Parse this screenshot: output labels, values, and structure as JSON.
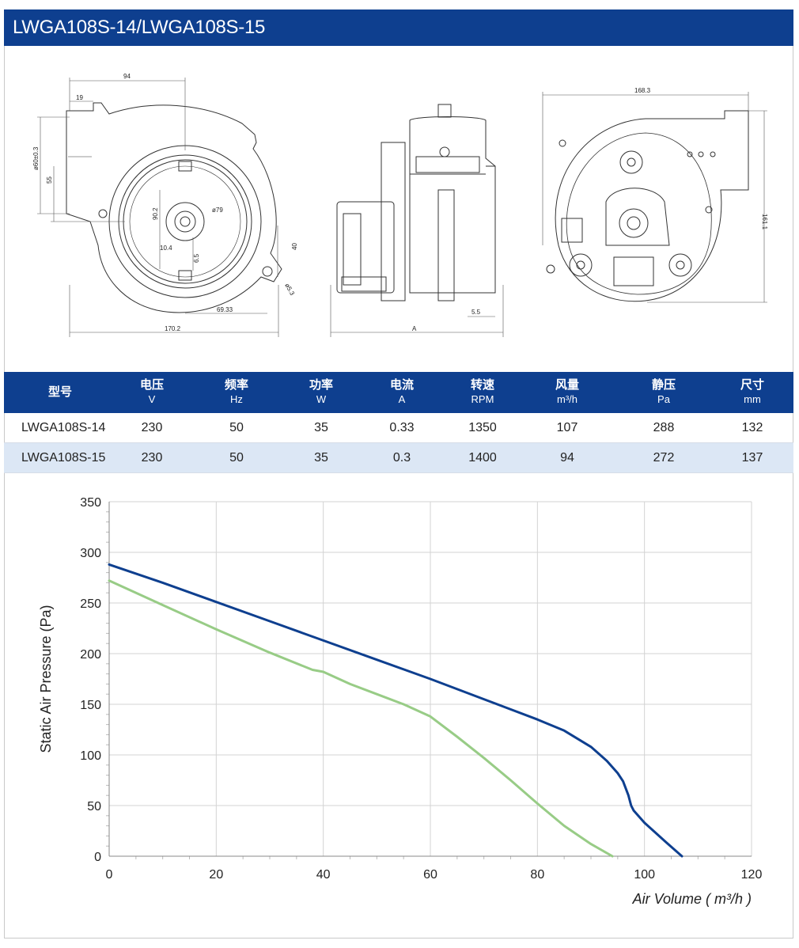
{
  "title": "LWGA108S-14/LWGA108S-15",
  "drawings": {
    "front": {
      "dim_width": "94",
      "dim_inlet": "19",
      "dim_inlet_dia": "ø60±0.3",
      "dim_height": "55",
      "dim_inner": "90.2",
      "dim_dia79": "ø79",
      "dim_10_4": "10.4",
      "dim_6_5": "6.5",
      "dim_40": "40",
      "dim_hole": "ø5.3",
      "dim_69": "69.33",
      "dim_total": "170.2"
    },
    "side": {
      "dim_5_5": "5.5",
      "dim_a": "A"
    },
    "back": {
      "dim_width": "168.3",
      "dim_height": "161.1"
    }
  },
  "table": {
    "headers": [
      {
        "label": "型号",
        "unit": ""
      },
      {
        "label": "电压",
        "unit": "V"
      },
      {
        "label": "频率",
        "unit": "Hz"
      },
      {
        "label": "功率",
        "unit": "W"
      },
      {
        "label": "电流",
        "unit": "A"
      },
      {
        "label": "转速",
        "unit": "RPM"
      },
      {
        "label": "风量",
        "unit": "m³/h"
      },
      {
        "label": "静压",
        "unit": "Pa"
      },
      {
        "label": "尺寸",
        "unit": "mm"
      }
    ],
    "rows": [
      [
        "LWGA108S-14",
        "230",
        "50",
        "35",
        "0.33",
        "1350",
        "107",
        "288",
        "132"
      ],
      [
        "LWGA108S-15",
        "230",
        "50",
        "35",
        "0.3",
        "1400",
        "94",
        "272",
        "137"
      ]
    ]
  },
  "colors": {
    "header_bg": "#0e3f8f",
    "alt_row": "#dce7f5",
    "series_1": "#0e3f8f",
    "series_2": "#98cc86"
  },
  "chart_data": {
    "type": "line",
    "title": "",
    "xlabel": "Air Volume ( m³/h )",
    "ylabel": "Static Air Pressure  (Pa)",
    "xlim": [
      0,
      120
    ],
    "ylim": [
      0,
      350
    ],
    "xticks": [
      0,
      20,
      40,
      60,
      80,
      100,
      120
    ],
    "yticks": [
      0,
      50,
      100,
      150,
      200,
      250,
      300,
      350
    ],
    "grid": true,
    "series": [
      {
        "x": [
          0,
          10,
          20,
          30,
          40,
          50,
          60,
          70,
          80,
          85,
          90,
          93,
          95,
          96,
          97,
          97.5,
          98,
          100,
          104,
          107
        ],
        "y": [
          288,
          270,
          251,
          232,
          213,
          194,
          175,
          155,
          135,
          124,
          108,
          94,
          82,
          74,
          60,
          50,
          45,
          33,
          14,
          0
        ]
      },
      {
        "x": [
          0,
          10,
          20,
          30,
          38,
          40,
          45,
          50,
          55,
          60,
          65,
          70,
          75,
          80,
          85,
          90,
          94
        ],
        "y": [
          272,
          248,
          224,
          201,
          184,
          182,
          170,
          160,
          150,
          138,
          118,
          97,
          75,
          52,
          30,
          12,
          0
        ]
      }
    ]
  }
}
